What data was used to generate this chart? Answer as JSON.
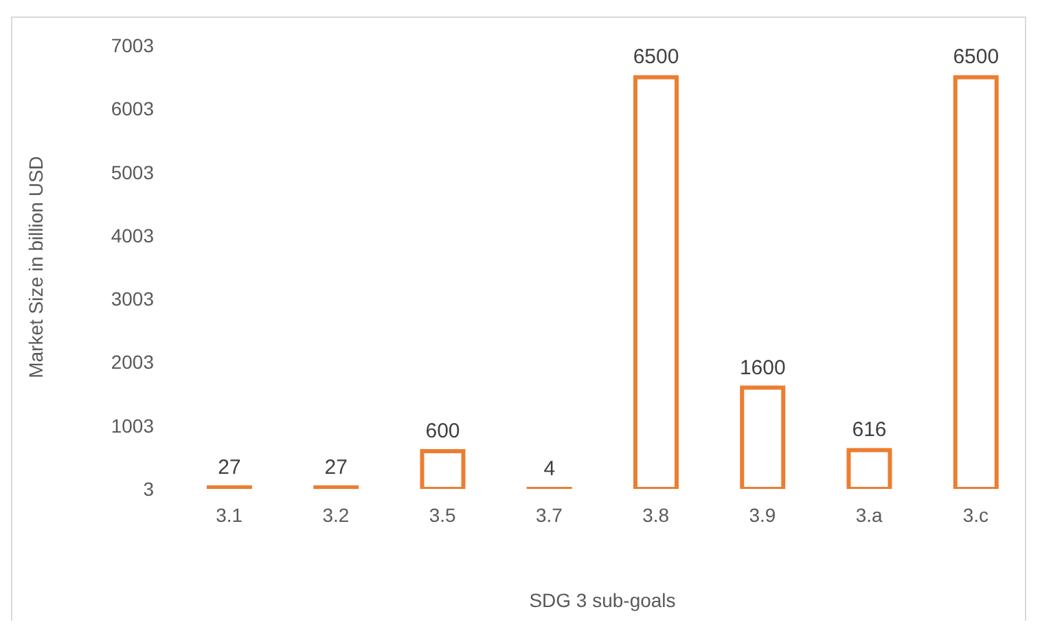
{
  "chart_data": {
    "type": "bar",
    "xlabel": "SDG 3 sub-goals",
    "ylabel": "Market Size in billion USD",
    "categories": [
      "3.1",
      "3.2",
      "3.5",
      "3.7",
      "3.8",
      "3.9",
      "3.a",
      "3.c"
    ],
    "values": [
      27,
      27,
      600,
      4,
      6500,
      1600,
      616,
      6500
    ],
    "color": "#ed7d31",
    "ylim": [
      3,
      7003
    ],
    "yticks": [
      3,
      1003,
      2003,
      3003,
      4003,
      5003,
      6003,
      7003
    ],
    "data_labels": true
  }
}
